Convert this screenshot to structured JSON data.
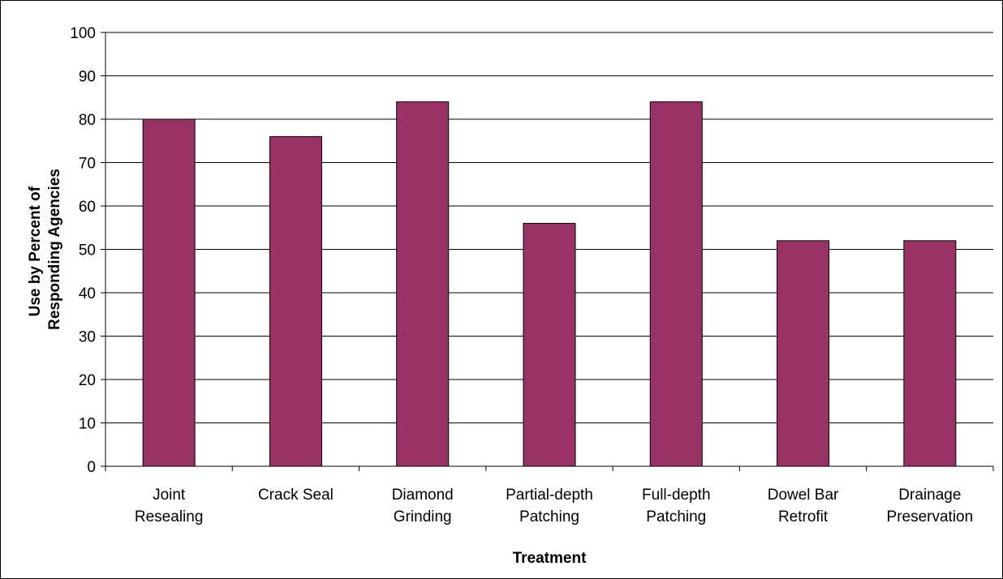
{
  "chart_data": {
    "type": "bar",
    "title": "",
    "xlabel": "Treatment",
    "ylabel_lines": [
      "Use by Percent of",
      "Responding Agencies"
    ],
    "categories": [
      [
        "Joint",
        "Resealing"
      ],
      [
        "Crack Seal"
      ],
      [
        "Diamond",
        "Grinding"
      ],
      [
        "Partial-depth",
        "Patching"
      ],
      [
        "Full-depth",
        "Patching"
      ],
      [
        "Dowel Bar",
        "Retrofit"
      ],
      [
        "Drainage",
        "Preservation"
      ]
    ],
    "values": [
      80,
      76,
      84,
      56,
      84,
      52,
      52
    ],
    "ylim": [
      0,
      100
    ],
    "yticks": [
      0,
      10,
      20,
      30,
      40,
      50,
      60,
      70,
      80,
      90,
      100
    ],
    "grid": true,
    "legend": "none",
    "colors": {
      "bar": "#993366",
      "grid": "#000000",
      "axis": "#000000"
    }
  }
}
